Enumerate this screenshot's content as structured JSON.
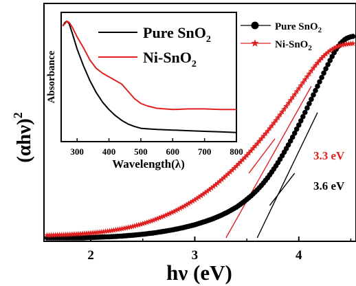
{
  "chart_data": [
    {
      "type": "scatter",
      "xlabel_main": "hν (eV)",
      "ylabel_main": "(αhν)",
      "ylabel_exp": "2",
      "xlim": [
        1.55,
        4.55
      ],
      "ylim": [
        0,
        1.0
      ],
      "x_ticks": [
        "2",
        "3",
        "4"
      ],
      "x_tick_values": [
        2,
        3,
        4
      ],
      "legend": [
        {
          "name_base": "Pure SnO",
          "name_sub": "2",
          "color": "#000000",
          "marker": "circle"
        },
        {
          "name_base": "Ni-SnO",
          "name_sub": "2",
          "color": "#e02020",
          "marker": "star"
        }
      ],
      "series": [
        {
          "name": "Pure SnO2",
          "color": "#000000",
          "marker": "circle",
          "x": [
            1.6,
            1.7,
            1.8,
            1.9,
            2.0,
            2.1,
            2.2,
            2.3,
            2.4,
            2.5,
            2.6,
            2.7,
            2.8,
            2.9,
            3.0,
            3.05,
            3.1,
            3.15,
            3.2,
            3.25,
            3.3,
            3.35,
            3.4,
            3.45,
            3.5,
            3.55,
            3.6,
            3.65,
            3.7,
            3.75,
            3.8,
            3.85,
            3.9,
            3.95,
            4.0,
            4.05,
            4.1,
            4.15,
            4.2,
            4.25,
            4.3,
            4.35,
            4.4,
            4.45,
            4.5,
            4.55
          ],
          "y": [
            0.0,
            0.0,
            0.0,
            0.0,
            0.002,
            0.004,
            0.006,
            0.009,
            0.013,
            0.018,
            0.024,
            0.032,
            0.041,
            0.052,
            0.065,
            0.073,
            0.081,
            0.09,
            0.1,
            0.111,
            0.123,
            0.137,
            0.152,
            0.17,
            0.19,
            0.212,
            0.237,
            0.265,
            0.297,
            0.333,
            0.372,
            0.415,
            0.46,
            0.508,
            0.558,
            0.61,
            0.664,
            0.718,
            0.772,
            0.826,
            0.878,
            0.926,
            0.962,
            0.985,
            0.995,
            1.0
          ]
        },
        {
          "name": "Ni-SnO2",
          "color": "#e02020",
          "marker": "star",
          "x": [
            1.6,
            1.7,
            1.8,
            1.9,
            2.0,
            2.1,
            2.2,
            2.3,
            2.4,
            2.5,
            2.6,
            2.7,
            2.8,
            2.9,
            3.0,
            3.05,
            3.1,
            3.15,
            3.2,
            3.25,
            3.3,
            3.35,
            3.4,
            3.45,
            3.5,
            3.55,
            3.6,
            3.65,
            3.7,
            3.75,
            3.8,
            3.85,
            3.9,
            3.95,
            4.0,
            4.05,
            4.1,
            4.15,
            4.2,
            4.25,
            4.3,
            4.35,
            4.4,
            4.45,
            4.5,
            4.55
          ],
          "y": [
            0.013,
            0.015,
            0.017,
            0.02,
            0.024,
            0.029,
            0.036,
            0.045,
            0.056,
            0.07,
            0.087,
            0.107,
            0.13,
            0.157,
            0.188,
            0.205,
            0.223,
            0.242,
            0.262,
            0.284,
            0.307,
            0.33,
            0.355,
            0.381,
            0.408,
            0.437,
            0.466,
            0.497,
            0.528,
            0.561,
            0.595,
            0.63,
            0.666,
            0.702,
            0.739,
            0.776,
            0.812,
            0.847,
            0.878,
            0.905,
            0.926,
            0.942,
            0.952,
            0.958,
            0.961,
            0.962
          ]
        }
      ],
      "tangent_lines": [
        {
          "label": "3.3 eV",
          "color": "#e02020",
          "x": [
            3.3,
            4.12
          ],
          "y": [
            0.0,
            0.75
          ]
        },
        {
          "label": "3.6 eV",
          "color": "#000000",
          "x": [
            3.6,
            4.18
          ],
          "y": [
            0.0,
            0.62
          ]
        }
      ],
      "pointer_lines": [
        {
          "color": "#e02020",
          "x": [
            3.52,
            3.77
          ],
          "y": [
            0.32,
            0.49
          ]
        },
        {
          "color": "#000000",
          "x": [
            3.72,
            3.96
          ],
          "y": [
            0.16,
            0.32
          ]
        }
      ]
    },
    {
      "type": "line",
      "xlabel": "Wavelength(λ)",
      "ylabel": "Absorbance",
      "xlim": [
        250,
        800
      ],
      "ylim": [
        0,
        1.0
      ],
      "x_ticks": [
        "300",
        "400",
        "500",
        "600",
        "700",
        "800"
      ],
      "x_tick_values": [
        300,
        400,
        500,
        600,
        700,
        800
      ],
      "legend": [
        {
          "name_base": "Pure SnO",
          "name_sub": "2",
          "color": "#000000"
        },
        {
          "name_base": "Ni-SnO",
          "name_sub": "2",
          "color": "#e02020"
        }
      ],
      "series": [
        {
          "name": "Pure SnO2",
          "color": "#000000",
          "x": [
            255,
            262,
            268,
            275,
            285,
            300,
            320,
            340,
            360,
            380,
            400,
            420,
            440,
            460,
            480,
            500,
            520,
            550,
            600,
            650,
            700,
            750,
            800
          ],
          "y": [
            0.91,
            0.94,
            0.95,
            0.93,
            0.85,
            0.72,
            0.58,
            0.46,
            0.36,
            0.28,
            0.22,
            0.17,
            0.13,
            0.1,
            0.08,
            0.065,
            0.06,
            0.055,
            0.05,
            0.045,
            0.04,
            0.035,
            0.03
          ]
        },
        {
          "name": "Ni-SnO2",
          "color": "#e02020",
          "x": [
            255,
            262,
            268,
            275,
            285,
            300,
            320,
            340,
            360,
            380,
            400,
            420,
            440,
            460,
            480,
            500,
            520,
            550,
            600,
            650,
            700,
            750,
            800
          ],
          "y": [
            0.91,
            0.93,
            0.95,
            0.94,
            0.9,
            0.82,
            0.73,
            0.63,
            0.56,
            0.52,
            0.49,
            0.46,
            0.43,
            0.37,
            0.31,
            0.27,
            0.25,
            0.23,
            0.22,
            0.225,
            0.225,
            0.22,
            0.22
          ]
        }
      ]
    }
  ]
}
